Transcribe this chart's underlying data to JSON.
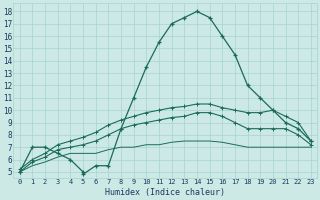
{
  "xlabel": "Humidex (Indice chaleur)",
  "bg_color": "#cce9e5",
  "grid_color": "#a8d4cf",
  "line_color": "#1a6b5a",
  "xlim_min": -0.5,
  "xlim_max": 23.5,
  "ylim_min": 4.5,
  "ylim_max": 18.7,
  "xticks": [
    0,
    1,
    2,
    3,
    4,
    5,
    6,
    7,
    8,
    9,
    10,
    11,
    12,
    13,
    14,
    15,
    16,
    17,
    18,
    19,
    20,
    21,
    22,
    23
  ],
  "yticks": [
    5,
    6,
    7,
    8,
    9,
    10,
    11,
    12,
    13,
    14,
    15,
    16,
    17,
    18
  ],
  "line1_x": [
    0,
    1,
    2,
    3,
    4,
    5,
    5,
    6,
    7,
    8,
    9,
    10,
    11,
    12,
    13,
    14,
    15,
    16,
    17,
    18,
    19,
    20,
    21,
    22,
    23
  ],
  "line1_y": [
    5,
    7,
    7,
    6.5,
    6,
    5,
    4.8,
    5.5,
    5.5,
    8.5,
    11,
    13.5,
    15.5,
    17,
    17.5,
    18,
    17.5,
    16,
    14.5,
    12,
    11,
    10,
    9,
    8.5,
    7.5
  ],
  "line2_x": [
    0,
    1,
    2,
    3,
    4,
    5,
    6,
    7,
    8,
    9,
    10,
    11,
    12,
    13,
    14,
    15,
    16,
    17,
    18,
    19,
    20,
    21,
    22,
    23
  ],
  "line2_y": [
    5.2,
    6.0,
    6.5,
    7.2,
    7.5,
    7.8,
    8.2,
    8.8,
    9.2,
    9.5,
    9.8,
    10.0,
    10.2,
    10.3,
    10.5,
    10.5,
    10.2,
    10.0,
    9.8,
    9.8,
    10.0,
    9.5,
    9.0,
    7.5
  ],
  "line3_x": [
    0,
    1,
    2,
    3,
    4,
    5,
    6,
    7,
    8,
    9,
    10,
    11,
    12,
    13,
    14,
    15,
    16,
    17,
    18,
    19,
    20,
    21,
    22,
    23
  ],
  "line3_y": [
    5.0,
    5.8,
    6.2,
    6.8,
    7.0,
    7.2,
    7.5,
    8.0,
    8.5,
    8.8,
    9.0,
    9.2,
    9.4,
    9.5,
    9.8,
    9.8,
    9.5,
    9.0,
    8.5,
    8.5,
    8.5,
    8.5,
    8.0,
    7.2
  ],
  "line4_x": [
    0,
    1,
    2,
    3,
    4,
    5,
    6,
    7,
    8,
    9,
    10,
    11,
    12,
    13,
    14,
    15,
    16,
    17,
    18,
    19,
    20,
    21,
    22,
    23
  ],
  "line4_y": [
    5.0,
    5.5,
    5.8,
    6.2,
    6.5,
    6.5,
    6.5,
    6.8,
    7.0,
    7.0,
    7.2,
    7.2,
    7.4,
    7.5,
    7.5,
    7.5,
    7.4,
    7.2,
    7.0,
    7.0,
    7.0,
    7.0,
    7.0,
    7.0
  ]
}
